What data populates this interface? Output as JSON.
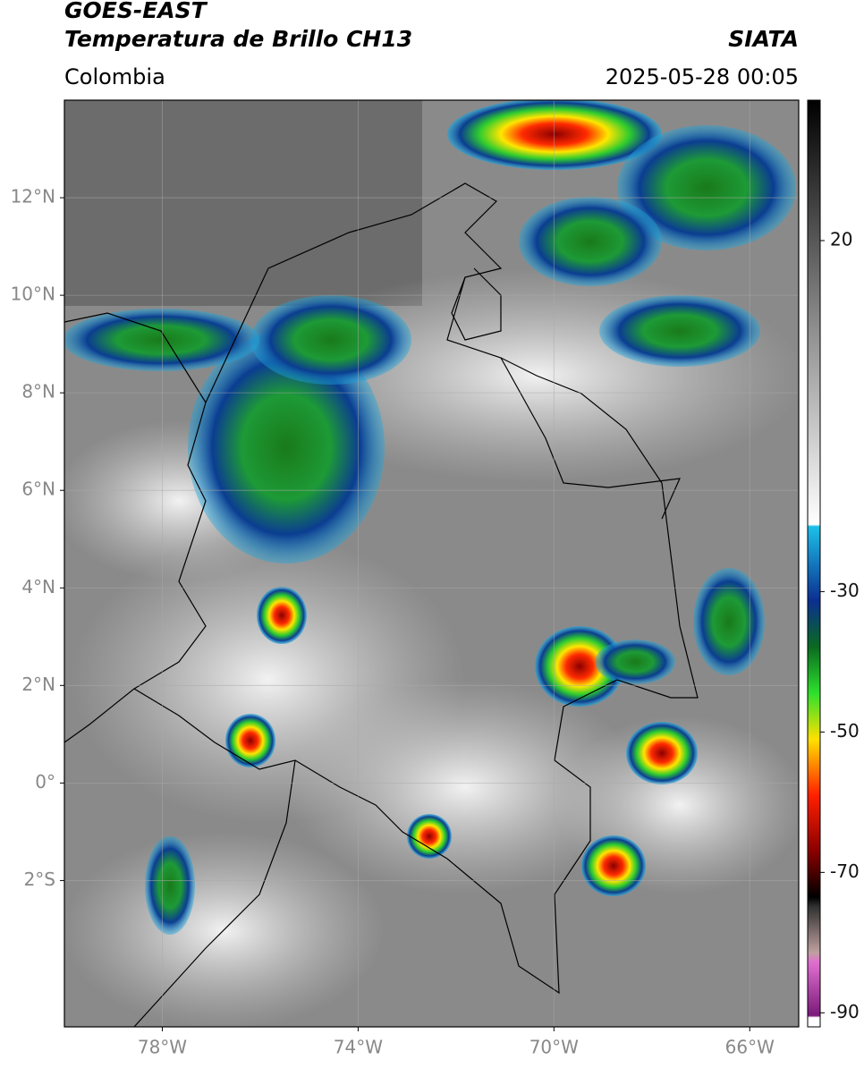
{
  "header": {
    "title": "GOES-EAST",
    "subtitle": "Temperatura de Brillo CH13",
    "source": "SIATA",
    "region": "Colombia",
    "datetime": "2025-05-28 00:05"
  },
  "map": {
    "xlim": [
      -80,
      -65
    ],
    "ylim": [
      -5,
      14
    ],
    "lon_ticks": [
      {
        "value": -78,
        "label": "78°W"
      },
      {
        "value": -74,
        "label": "74°W"
      },
      {
        "value": -70,
        "label": "70°W"
      },
      {
        "value": -66,
        "label": "66°W"
      }
    ],
    "lat_ticks": [
      {
        "value": 12,
        "label": "12°N"
      },
      {
        "value": 10,
        "label": "10°N"
      },
      {
        "value": 8,
        "label": "8°N"
      },
      {
        "value": 6,
        "label": "6°N"
      },
      {
        "value": 4,
        "label": "4°N"
      },
      {
        "value": 2,
        "label": "2°N"
      },
      {
        "value": 0,
        "label": "0°"
      },
      {
        "value": -2,
        "label": "2°S"
      }
    ]
  },
  "colorbar": {
    "lim": [
      -92,
      40
    ],
    "ticks": [
      20,
      -30,
      -50,
      -70,
      -90
    ]
  }
}
